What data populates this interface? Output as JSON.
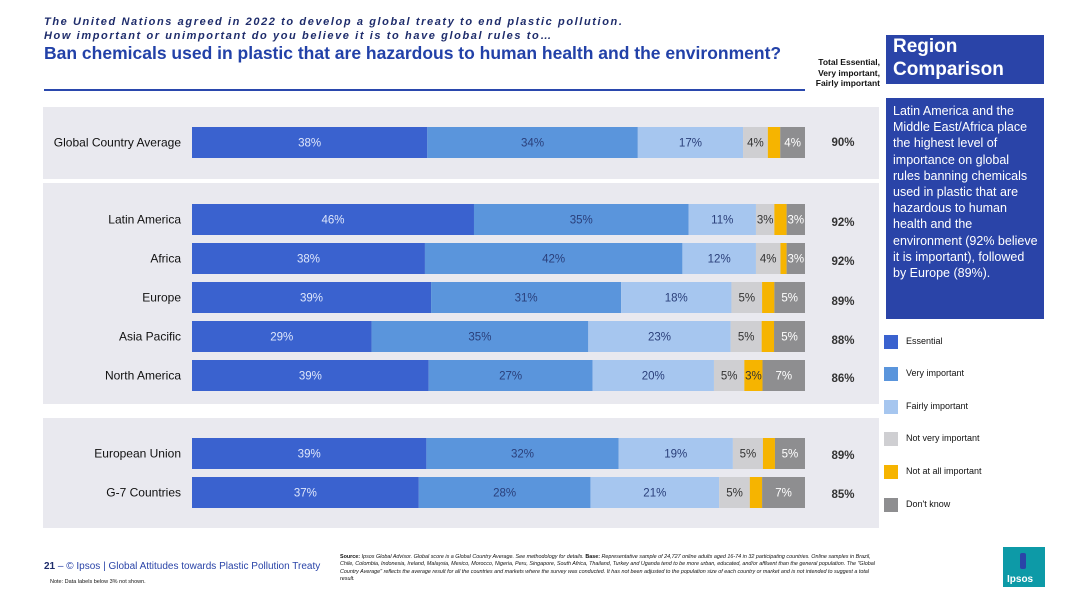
{
  "header": {
    "subtitle_line1": "The United Nations agreed in 2022 to develop a global treaty to end plastic pollution.",
    "subtitle_line2": "How important or unimportant do you believe it is to have global rules to…",
    "title": "Ban chemicals used in plastic that are hazardous to human health and the environment?",
    "total_header_line1": "Total Essential,",
    "total_header_line2": "Very important,",
    "total_header_line3": "Fairly important"
  },
  "sidebar": {
    "region_title_line1": "Region",
    "region_title_line2": "Comparison",
    "description": "Latin America and the Middle East/Africa place the highest level of importance on global rules banning chemicals used in plastic that are hazardous to human health and the environment (92% believe it is important), followed by Europe (89%)."
  },
  "colors": {
    "essential": "#3a62cf",
    "very_important": "#5a95dc",
    "fairly_important": "#a6c6ef",
    "not_very_important": "#cfcfd2",
    "not_at_all_important": "#f6b400",
    "dont_know": "#8e8e90"
  },
  "chart_data": {
    "type": "bar",
    "orientation": "horizontal",
    "stacked": true,
    "xlim": [
      0,
      100
    ],
    "legend_position": "right",
    "series_names": [
      "Essential",
      "Very important",
      "Fairly important",
      "Not very important",
      "Not at all important",
      "Don't know"
    ],
    "rows": [
      {
        "label": "Global Country Average",
        "values": [
          38,
          34,
          17,
          4,
          2,
          4
        ],
        "labels": [
          "38%",
          "34%",
          "17%",
          "4%",
          "",
          "4%"
        ],
        "total": "90%"
      },
      {
        "label": "Latin America",
        "values": [
          46,
          35,
          11,
          3,
          2,
          3
        ],
        "labels": [
          "46%",
          "35%",
          "11%",
          "3%",
          "",
          "3%"
        ],
        "total": "92%"
      },
      {
        "label": "Africa",
        "values": [
          38,
          42,
          12,
          4,
          1,
          3
        ],
        "labels": [
          "38%",
          "42%",
          "12%",
          "4%",
          "",
          "3%"
        ],
        "total": "92%"
      },
      {
        "label": "Europe",
        "values": [
          39,
          31,
          18,
          5,
          2,
          5
        ],
        "labels": [
          "39%",
          "31%",
          "18%",
          "5%",
          "",
          "5%"
        ],
        "total": "89%"
      },
      {
        "label": "Asia Pacific",
        "values": [
          29,
          35,
          23,
          5,
          2,
          5
        ],
        "labels": [
          "29%",
          "35%",
          "23%",
          "5%",
          "",
          "5%"
        ],
        "total": "88%"
      },
      {
        "label": "North America",
        "values": [
          39,
          27,
          20,
          5,
          3,
          7
        ],
        "labels": [
          "39%",
          "27%",
          "20%",
          "5%",
          "3%",
          "7%"
        ],
        "total": "86%"
      },
      {
        "label": "European Union",
        "values": [
          39,
          32,
          19,
          5,
          2,
          5
        ],
        "labels": [
          "39%",
          "32%",
          "19%",
          "5%",
          "",
          "5%"
        ],
        "total": "89%"
      },
      {
        "label": "G-7 Countries",
        "values": [
          37,
          28,
          21,
          5,
          2,
          7
        ],
        "labels": [
          "37%",
          "28%",
          "21%",
          "5%",
          "",
          "7%"
        ],
        "total": "85%"
      }
    ]
  },
  "legend": [
    {
      "label": "Essential",
      "color": "#3a62cf"
    },
    {
      "label": "Very important",
      "color": "#5a95dc"
    },
    {
      "label": "Fairly important",
      "color": "#a6c6ef"
    },
    {
      "label": "Not very important",
      "color": "#cfcfd2"
    },
    {
      "label": "Not at all important",
      "color": "#f6b400"
    },
    {
      "label": "Don't know",
      "color": "#8e8e90"
    }
  ],
  "footer": {
    "page_number": "21",
    "dash": "–",
    "source_title": "© Ipsos | Global Attitudes towards Plastic Pollution Treaty",
    "note": "Note: Data labels below 3% not shown.",
    "source_label": "Source:",
    "source_text": "Ipsos Global Advisor. Global score is a Global Country Average. See methodology for details.",
    "base_label": "Base:",
    "base_text": "Representative sample of 24,727 online adults aged 16-74 in 32 participating countries. Online samples in Brazil, Chile, Colombia, Indonesia, Ireland, Malaysia, Mexico, Morocco, Nigeria, Peru, Singapore, South Africa, Thailand, Turkey and Uganda tend to be more urban, educated, and/or affluent than the general population. The \"Global Country Average\" reflects the average result for all the countries and markets where the survey was conducted. It has not been adjusted to the population size of each country or market and is not intended to suggest a total result.",
    "logo_text": "Ipsos"
  }
}
